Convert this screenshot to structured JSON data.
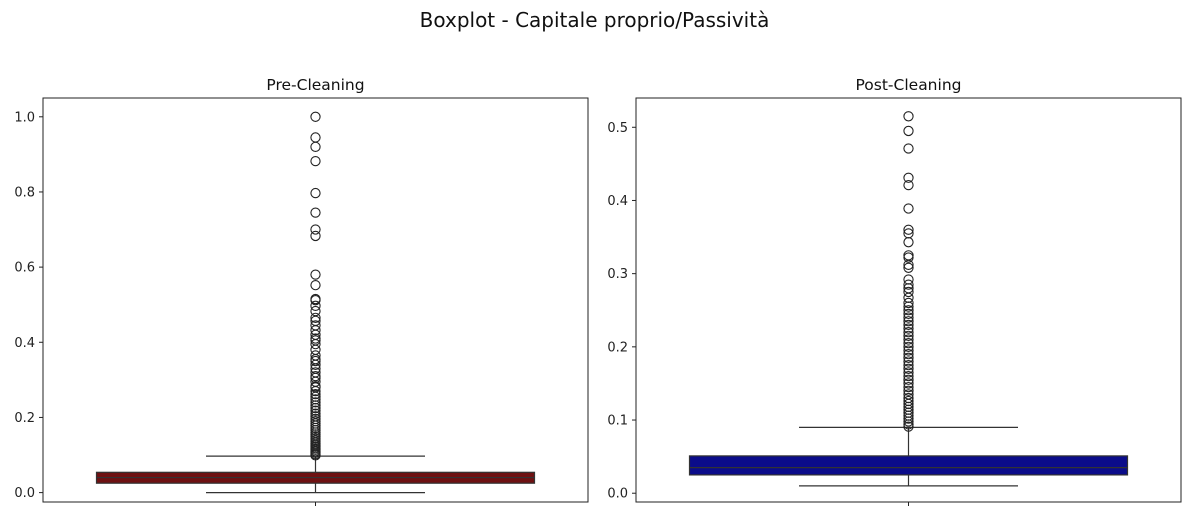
{
  "figure_title": "Boxplot - Capitale proprio/Passività",
  "chart_data": [
    {
      "type": "boxplot",
      "title": "Pre-Cleaning",
      "xlabel": "",
      "ylabel": "",
      "ylim": [
        -0.025,
        1.05
      ],
      "yticks": [
        0.0,
        0.2,
        0.4,
        0.6,
        0.8,
        1.0
      ],
      "ytick_labels": [
        "0.0",
        "0.2",
        "0.4",
        "0.6",
        "0.8",
        "1.0"
      ],
      "box_color": "#6e1112",
      "box": {
        "whisker_low": 0.0,
        "q1": 0.025,
        "median": 0.04,
        "q3": 0.054,
        "whisker_high": 0.097
      },
      "outliers": [
        1.0,
        0.945,
        0.92,
        0.882,
        0.797,
        0.745,
        0.7,
        0.683,
        0.58,
        0.552,
        0.515,
        0.512,
        0.497,
        0.483,
        0.465,
        0.457,
        0.445,
        0.432,
        0.42,
        0.41,
        0.405,
        0.395,
        0.38,
        0.365,
        0.355,
        0.35,
        0.34,
        0.33,
        0.32,
        0.31,
        0.305,
        0.295,
        0.283,
        0.28,
        0.27,
        0.262,
        0.255,
        0.248,
        0.24,
        0.232,
        0.225,
        0.218,
        0.21,
        0.203,
        0.196,
        0.19,
        0.184,
        0.178,
        0.172,
        0.166,
        0.16,
        0.155,
        0.15,
        0.145,
        0.14,
        0.135,
        0.13,
        0.126,
        0.122,
        0.118,
        0.114,
        0.11,
        0.106,
        0.102,
        0.099
      ]
    },
    {
      "type": "boxplot",
      "title": "Post-Cleaning",
      "xlabel": "",
      "ylabel": "",
      "ylim": [
        -0.012,
        0.54
      ],
      "yticks": [
        0.0,
        0.1,
        0.2,
        0.3,
        0.4,
        0.5
      ],
      "ytick_labels": [
        "0.0",
        "0.1",
        "0.2",
        "0.3",
        "0.4",
        "0.5"
      ],
      "box_color": "#0b0c8a",
      "box": {
        "whisker_low": 0.01,
        "q1": 0.025,
        "median": 0.035,
        "q3": 0.051,
        "whisker_high": 0.09
      },
      "outliers": [
        0.515,
        0.495,
        0.471,
        0.431,
        0.421,
        0.389,
        0.36,
        0.355,
        0.343,
        0.325,
        0.322,
        0.312,
        0.308,
        0.292,
        0.285,
        0.28,
        0.275,
        0.267,
        0.26,
        0.255,
        0.25,
        0.245,
        0.24,
        0.235,
        0.23,
        0.225,
        0.22,
        0.215,
        0.21,
        0.205,
        0.2,
        0.195,
        0.19,
        0.185,
        0.18,
        0.175,
        0.17,
        0.165,
        0.16,
        0.155,
        0.15,
        0.145,
        0.14,
        0.135,
        0.13,
        0.126,
        0.122,
        0.118,
        0.114,
        0.11,
        0.106,
        0.102,
        0.098,
        0.094,
        0.091
      ]
    }
  ]
}
